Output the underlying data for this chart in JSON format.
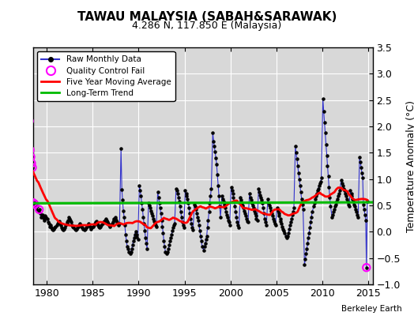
{
  "title": "TAWAU MALAYSIA (SABAH&SARAWAK)",
  "subtitle": "4.286 N, 117.850 E (Malaysia)",
  "ylabel": "Temperature Anomaly (°C)",
  "credit": "Berkeley Earth",
  "ylim": [
    -1.0,
    3.5
  ],
  "yticks": [
    -1.0,
    -0.5,
    0.0,
    0.5,
    1.0,
    1.5,
    2.0,
    2.5,
    3.0,
    3.5
  ],
  "xlim": [
    1978.5,
    2015.5
  ],
  "xticks": [
    1980,
    1985,
    1990,
    1995,
    2000,
    2005,
    2010,
    2015
  ],
  "bg_color": "#d8d8d8",
  "grid_color": "white",
  "raw_color": "#3333cc",
  "dot_color": "black",
  "ma_color": "red",
  "trend_color": "#00bb00",
  "qc_color": "magenta",
  "trend_intercept": 0.54,
  "trend_slope": 0.0005,
  "raw_data": [
    [
      1978.08,
      2.1
    ],
    [
      1978.17,
      1.55
    ],
    [
      1978.25,
      1.42
    ],
    [
      1978.33,
      1.3
    ],
    [
      1978.42,
      1.22
    ],
    [
      1978.5,
      0.55
    ],
    [
      1978.58,
      0.48
    ],
    [
      1978.67,
      0.52
    ],
    [
      1978.75,
      0.58
    ],
    [
      1978.83,
      0.42
    ],
    [
      1978.92,
      0.48
    ],
    [
      1979.08,
      0.38
    ],
    [
      1979.17,
      0.42
    ],
    [
      1979.25,
      0.35
    ],
    [
      1979.33,
      0.28
    ],
    [
      1979.42,
      0.3
    ],
    [
      1979.5,
      0.32
    ],
    [
      1979.58,
      0.28
    ],
    [
      1979.67,
      0.25
    ],
    [
      1979.75,
      0.22
    ],
    [
      1979.83,
      0.3
    ],
    [
      1979.92,
      0.28
    ],
    [
      1980.08,
      0.25
    ],
    [
      1980.17,
      0.18
    ],
    [
      1980.25,
      0.15
    ],
    [
      1980.33,
      0.1
    ],
    [
      1980.42,
      0.12
    ],
    [
      1980.5,
      0.08
    ],
    [
      1980.58,
      0.05
    ],
    [
      1980.67,
      0.03
    ],
    [
      1980.75,
      0.05
    ],
    [
      1980.83,
      0.08
    ],
    [
      1980.92,
      0.1
    ],
    [
      1981.08,
      0.12
    ],
    [
      1981.17,
      0.15
    ],
    [
      1981.25,
      0.18
    ],
    [
      1981.33,
      0.2
    ],
    [
      1981.42,
      0.15
    ],
    [
      1981.5,
      0.12
    ],
    [
      1981.58,
      0.08
    ],
    [
      1981.67,
      0.05
    ],
    [
      1981.75,
      0.03
    ],
    [
      1981.83,
      0.05
    ],
    [
      1981.92,
      0.08
    ],
    [
      1982.08,
      0.12
    ],
    [
      1982.17,
      0.15
    ],
    [
      1982.25,
      0.18
    ],
    [
      1982.33,
      0.22
    ],
    [
      1982.42,
      0.28
    ],
    [
      1982.5,
      0.25
    ],
    [
      1982.58,
      0.22
    ],
    [
      1982.67,
      0.18
    ],
    [
      1982.75,
      0.12
    ],
    [
      1982.83,
      0.1
    ],
    [
      1982.92,
      0.08
    ],
    [
      1983.08,
      0.05
    ],
    [
      1983.17,
      0.03
    ],
    [
      1983.25,
      0.05
    ],
    [
      1983.33,
      0.08
    ],
    [
      1983.42,
      0.1
    ],
    [
      1983.5,
      0.12
    ],
    [
      1983.58,
      0.15
    ],
    [
      1983.67,
      0.12
    ],
    [
      1983.75,
      0.1
    ],
    [
      1983.83,
      0.08
    ],
    [
      1983.92,
      0.05
    ],
    [
      1984.08,
      0.03
    ],
    [
      1984.17,
      0.05
    ],
    [
      1984.25,
      0.08
    ],
    [
      1984.33,
      0.1
    ],
    [
      1984.42,
      0.12
    ],
    [
      1984.5,
      0.15
    ],
    [
      1984.58,
      0.12
    ],
    [
      1984.67,
      0.1
    ],
    [
      1984.75,
      0.08
    ],
    [
      1984.83,
      0.05
    ],
    [
      1984.92,
      0.08
    ],
    [
      1985.08,
      0.1
    ],
    [
      1985.17,
      0.12
    ],
    [
      1985.25,
      0.15
    ],
    [
      1985.33,
      0.18
    ],
    [
      1985.42,
      0.2
    ],
    [
      1985.5,
      0.15
    ],
    [
      1985.58,
      0.12
    ],
    [
      1985.67,
      0.1
    ],
    [
      1985.75,
      0.08
    ],
    [
      1985.83,
      0.1
    ],
    [
      1985.92,
      0.12
    ],
    [
      1986.08,
      0.15
    ],
    [
      1986.17,
      0.18
    ],
    [
      1986.25,
      0.2
    ],
    [
      1986.33,
      0.22
    ],
    [
      1986.42,
      0.25
    ],
    [
      1986.5,
      0.22
    ],
    [
      1986.58,
      0.18
    ],
    [
      1986.67,
      0.15
    ],
    [
      1986.75,
      0.12
    ],
    [
      1986.83,
      0.1
    ],
    [
      1986.92,
      0.12
    ],
    [
      1987.08,
      0.15
    ],
    [
      1987.17,
      0.18
    ],
    [
      1987.25,
      0.22
    ],
    [
      1987.33,
      0.25
    ],
    [
      1987.42,
      0.28
    ],
    [
      1987.5,
      0.25
    ],
    [
      1987.58,
      0.22
    ],
    [
      1987.67,
      0.18
    ],
    [
      1987.75,
      0.15
    ],
    [
      1987.83,
      0.12
    ],
    [
      1987.92,
      0.15
    ],
    [
      1988.08,
      1.58
    ],
    [
      1988.17,
      0.8
    ],
    [
      1988.25,
      0.6
    ],
    [
      1988.33,
      0.4
    ],
    [
      1988.42,
      0.28
    ],
    [
      1988.5,
      0.12
    ],
    [
      1988.58,
      -0.05
    ],
    [
      1988.67,
      -0.18
    ],
    [
      1988.75,
      -0.28
    ],
    [
      1988.83,
      -0.32
    ],
    [
      1988.92,
      -0.38
    ],
    [
      1989.08,
      -0.42
    ],
    [
      1989.17,
      -0.38
    ],
    [
      1989.25,
      -0.32
    ],
    [
      1989.33,
      -0.25
    ],
    [
      1989.42,
      -0.18
    ],
    [
      1989.5,
      -0.12
    ],
    [
      1989.58,
      -0.05
    ],
    [
      1989.67,
      0.0
    ],
    [
      1989.75,
      -0.05
    ],
    [
      1989.83,
      -0.1
    ],
    [
      1989.92,
      -0.15
    ],
    [
      1990.08,
      0.88
    ],
    [
      1990.17,
      0.78
    ],
    [
      1990.25,
      0.68
    ],
    [
      1990.33,
      0.55
    ],
    [
      1990.42,
      0.42
    ],
    [
      1990.5,
      0.28
    ],
    [
      1990.58,
      0.15
    ],
    [
      1990.67,
      0.02
    ],
    [
      1990.75,
      -0.12
    ],
    [
      1990.83,
      -0.22
    ],
    [
      1990.92,
      -0.32
    ],
    [
      1991.08,
      0.55
    ],
    [
      1991.17,
      0.5
    ],
    [
      1991.25,
      0.45
    ],
    [
      1991.33,
      0.4
    ],
    [
      1991.42,
      0.35
    ],
    [
      1991.5,
      0.3
    ],
    [
      1991.58,
      0.25
    ],
    [
      1991.67,
      0.2
    ],
    [
      1991.75,
      0.15
    ],
    [
      1991.83,
      0.12
    ],
    [
      1991.92,
      0.1
    ],
    [
      1992.08,
      0.75
    ],
    [
      1992.17,
      0.65
    ],
    [
      1992.25,
      0.55
    ],
    [
      1992.33,
      0.45
    ],
    [
      1992.42,
      0.35
    ],
    [
      1992.5,
      0.22
    ],
    [
      1992.58,
      0.1
    ],
    [
      1992.67,
      -0.02
    ],
    [
      1992.75,
      -0.18
    ],
    [
      1992.83,
      -0.28
    ],
    [
      1992.92,
      -0.38
    ],
    [
      1993.08,
      -0.42
    ],
    [
      1993.17,
      -0.38
    ],
    [
      1993.25,
      -0.32
    ],
    [
      1993.33,
      -0.25
    ],
    [
      1993.42,
      -0.18
    ],
    [
      1993.5,
      -0.12
    ],
    [
      1993.58,
      -0.05
    ],
    [
      1993.67,
      0.02
    ],
    [
      1993.75,
      0.08
    ],
    [
      1993.83,
      0.12
    ],
    [
      1993.92,
      0.15
    ],
    [
      1994.08,
      0.82
    ],
    [
      1994.17,
      0.78
    ],
    [
      1994.25,
      0.72
    ],
    [
      1994.33,
      0.65
    ],
    [
      1994.42,
      0.58
    ],
    [
      1994.5,
      0.48
    ],
    [
      1994.58,
      0.38
    ],
    [
      1994.67,
      0.28
    ],
    [
      1994.75,
      0.18
    ],
    [
      1994.83,
      0.12
    ],
    [
      1994.92,
      0.08
    ],
    [
      1995.08,
      0.78
    ],
    [
      1995.17,
      0.72
    ],
    [
      1995.25,
      0.68
    ],
    [
      1995.33,
      0.62
    ],
    [
      1995.42,
      0.55
    ],
    [
      1995.5,
      0.45
    ],
    [
      1995.58,
      0.35
    ],
    [
      1995.67,
      0.25
    ],
    [
      1995.75,
      0.15
    ],
    [
      1995.83,
      0.08
    ],
    [
      1995.92,
      0.03
    ],
    [
      1996.08,
      0.52
    ],
    [
      1996.17,
      0.48
    ],
    [
      1996.25,
      0.42
    ],
    [
      1996.33,
      0.35
    ],
    [
      1996.42,
      0.28
    ],
    [
      1996.5,
      0.22
    ],
    [
      1996.58,
      0.12
    ],
    [
      1996.67,
      0.02
    ],
    [
      1996.75,
      -0.08
    ],
    [
      1996.83,
      -0.18
    ],
    [
      1996.92,
      -0.28
    ],
    [
      1997.08,
      -0.35
    ],
    [
      1997.17,
      -0.28
    ],
    [
      1997.25,
      -0.22
    ],
    [
      1997.33,
      -0.15
    ],
    [
      1997.42,
      -0.08
    ],
    [
      1997.5,
      0.08
    ],
    [
      1997.58,
      0.22
    ],
    [
      1997.67,
      0.38
    ],
    [
      1997.75,
      0.55
    ],
    [
      1997.83,
      0.68
    ],
    [
      1997.92,
      0.82
    ],
    [
      1998.08,
      1.88
    ],
    [
      1998.17,
      1.72
    ],
    [
      1998.25,
      1.62
    ],
    [
      1998.33,
      1.52
    ],
    [
      1998.42,
      1.4
    ],
    [
      1998.5,
      1.28
    ],
    [
      1998.58,
      1.08
    ],
    [
      1998.67,
      0.88
    ],
    [
      1998.75,
      0.68
    ],
    [
      1998.83,
      0.48
    ],
    [
      1998.92,
      0.28
    ],
    [
      1999.08,
      0.68
    ],
    [
      1999.17,
      0.62
    ],
    [
      1999.25,
      0.58
    ],
    [
      1999.33,
      0.52
    ],
    [
      1999.42,
      0.45
    ],
    [
      1999.5,
      0.38
    ],
    [
      1999.58,
      0.32
    ],
    [
      1999.67,
      0.28
    ],
    [
      1999.75,
      0.22
    ],
    [
      1999.83,
      0.18
    ],
    [
      1999.92,
      0.12
    ],
    [
      2000.08,
      0.85
    ],
    [
      2000.17,
      0.78
    ],
    [
      2000.25,
      0.72
    ],
    [
      2000.33,
      0.65
    ],
    [
      2000.42,
      0.58
    ],
    [
      2000.5,
      0.48
    ],
    [
      2000.58,
      0.38
    ],
    [
      2000.67,
      0.28
    ],
    [
      2000.75,
      0.18
    ],
    [
      2000.83,
      0.12
    ],
    [
      2000.92,
      0.08
    ],
    [
      2001.08,
      0.65
    ],
    [
      2001.17,
      0.6
    ],
    [
      2001.25,
      0.55
    ],
    [
      2001.33,
      0.5
    ],
    [
      2001.42,
      0.45
    ],
    [
      2001.5,
      0.4
    ],
    [
      2001.58,
      0.35
    ],
    [
      2001.67,
      0.3
    ],
    [
      2001.75,
      0.25
    ],
    [
      2001.83,
      0.2
    ],
    [
      2001.92,
      0.18
    ],
    [
      2002.08,
      0.72
    ],
    [
      2002.17,
      0.65
    ],
    [
      2002.25,
      0.6
    ],
    [
      2002.33,
      0.55
    ],
    [
      2002.42,
      0.5
    ],
    [
      2002.5,
      0.45
    ],
    [
      2002.58,
      0.4
    ],
    [
      2002.67,
      0.35
    ],
    [
      2002.75,
      0.3
    ],
    [
      2002.83,
      0.25
    ],
    [
      2002.92,
      0.22
    ],
    [
      2003.08,
      0.82
    ],
    [
      2003.17,
      0.75
    ],
    [
      2003.25,
      0.7
    ],
    [
      2003.33,
      0.65
    ],
    [
      2003.42,
      0.6
    ],
    [
      2003.5,
      0.55
    ],
    [
      2003.58,
      0.45
    ],
    [
      2003.67,
      0.35
    ],
    [
      2003.75,
      0.25
    ],
    [
      2003.83,
      0.18
    ],
    [
      2003.92,
      0.12
    ],
    [
      2004.08,
      0.62
    ],
    [
      2004.17,
      0.55
    ],
    [
      2004.25,
      0.5
    ],
    [
      2004.33,
      0.45
    ],
    [
      2004.42,
      0.4
    ],
    [
      2004.5,
      0.35
    ],
    [
      2004.58,
      0.3
    ],
    [
      2004.67,
      0.25
    ],
    [
      2004.75,
      0.2
    ],
    [
      2004.83,
      0.15
    ],
    [
      2004.92,
      0.12
    ],
    [
      2005.08,
      0.45
    ],
    [
      2005.17,
      0.4
    ],
    [
      2005.25,
      0.35
    ],
    [
      2005.33,
      0.3
    ],
    [
      2005.42,
      0.25
    ],
    [
      2005.5,
      0.2
    ],
    [
      2005.58,
      0.15
    ],
    [
      2005.67,
      0.1
    ],
    [
      2005.75,
      0.05
    ],
    [
      2005.83,
      0.02
    ],
    [
      2005.92,
      -0.02
    ],
    [
      2006.08,
      -0.08
    ],
    [
      2006.17,
      -0.12
    ],
    [
      2006.25,
      -0.08
    ],
    [
      2006.33,
      -0.02
    ],
    [
      2006.42,
      0.05
    ],
    [
      2006.5,
      0.12
    ],
    [
      2006.58,
      0.18
    ],
    [
      2006.67,
      0.25
    ],
    [
      2006.75,
      0.32
    ],
    [
      2006.83,
      0.38
    ],
    [
      2006.92,
      0.45
    ],
    [
      2007.08,
      1.62
    ],
    [
      2007.17,
      1.5
    ],
    [
      2007.25,
      1.38
    ],
    [
      2007.33,
      1.25
    ],
    [
      2007.42,
      1.12
    ],
    [
      2007.5,
      1.0
    ],
    [
      2007.58,
      0.88
    ],
    [
      2007.67,
      0.75
    ],
    [
      2007.75,
      0.62
    ],
    [
      2007.83,
      0.52
    ],
    [
      2007.92,
      0.42
    ],
    [
      2008.08,
      -0.62
    ],
    [
      2008.17,
      -0.52
    ],
    [
      2008.25,
      -0.42
    ],
    [
      2008.33,
      -0.32
    ],
    [
      2008.42,
      -0.22
    ],
    [
      2008.5,
      -0.12
    ],
    [
      2008.58,
      -0.02
    ],
    [
      2008.67,
      0.08
    ],
    [
      2008.75,
      0.18
    ],
    [
      2008.83,
      0.28
    ],
    [
      2008.92,
      0.38
    ],
    [
      2009.08,
      0.48
    ],
    [
      2009.17,
      0.55
    ],
    [
      2009.25,
      0.62
    ],
    [
      2009.33,
      0.68
    ],
    [
      2009.42,
      0.72
    ],
    [
      2009.5,
      0.78
    ],
    [
      2009.58,
      0.82
    ],
    [
      2009.67,
      0.88
    ],
    [
      2009.75,
      0.92
    ],
    [
      2009.83,
      0.95
    ],
    [
      2009.92,
      1.02
    ],
    [
      2010.08,
      2.52
    ],
    [
      2010.17,
      2.28
    ],
    [
      2010.25,
      2.08
    ],
    [
      2010.33,
      1.88
    ],
    [
      2010.42,
      1.65
    ],
    [
      2010.5,
      1.45
    ],
    [
      2010.58,
      1.25
    ],
    [
      2010.67,
      1.05
    ],
    [
      2010.75,
      0.85
    ],
    [
      2010.83,
      0.65
    ],
    [
      2010.92,
      0.48
    ],
    [
      2011.08,
      0.28
    ],
    [
      2011.17,
      0.32
    ],
    [
      2011.25,
      0.38
    ],
    [
      2011.33,
      0.42
    ],
    [
      2011.42,
      0.48
    ],
    [
      2011.5,
      0.52
    ],
    [
      2011.58,
      0.58
    ],
    [
      2011.67,
      0.62
    ],
    [
      2011.75,
      0.68
    ],
    [
      2011.83,
      0.72
    ],
    [
      2011.92,
      0.78
    ],
    [
      2012.08,
      0.98
    ],
    [
      2012.17,
      0.92
    ],
    [
      2012.25,
      0.88
    ],
    [
      2012.33,
      0.82
    ],
    [
      2012.42,
      0.78
    ],
    [
      2012.5,
      0.72
    ],
    [
      2012.58,
      0.68
    ],
    [
      2012.67,
      0.62
    ],
    [
      2012.75,
      0.58
    ],
    [
      2012.83,
      0.52
    ],
    [
      2012.92,
      0.48
    ],
    [
      2013.08,
      0.78
    ],
    [
      2013.17,
      0.72
    ],
    [
      2013.25,
      0.68
    ],
    [
      2013.33,
      0.62
    ],
    [
      2013.42,
      0.58
    ],
    [
      2013.5,
      0.52
    ],
    [
      2013.58,
      0.48
    ],
    [
      2013.67,
      0.42
    ],
    [
      2013.75,
      0.38
    ],
    [
      2013.83,
      0.32
    ],
    [
      2013.92,
      0.28
    ],
    [
      2014.08,
      1.42
    ],
    [
      2014.17,
      1.32
    ],
    [
      2014.25,
      1.22
    ],
    [
      2014.33,
      1.12
    ],
    [
      2014.42,
      1.02
    ],
    [
      2014.5,
      0.52
    ],
    [
      2014.58,
      0.42
    ],
    [
      2014.67,
      0.32
    ],
    [
      2014.75,
      0.22
    ],
    [
      2014.83,
      -0.68
    ],
    [
      2014.92,
      0.58
    ]
  ],
  "qc_fail_points": [
    [
      1978.08,
      2.1
    ],
    [
      1978.17,
      1.55
    ],
    [
      1978.25,
      1.42
    ],
    [
      1978.33,
      1.3
    ],
    [
      1978.42,
      1.22
    ],
    [
      1978.5,
      0.55
    ],
    [
      1978.67,
      0.52
    ],
    [
      1979.17,
      0.42
    ],
    [
      2014.83,
      -0.68
    ]
  ]
}
